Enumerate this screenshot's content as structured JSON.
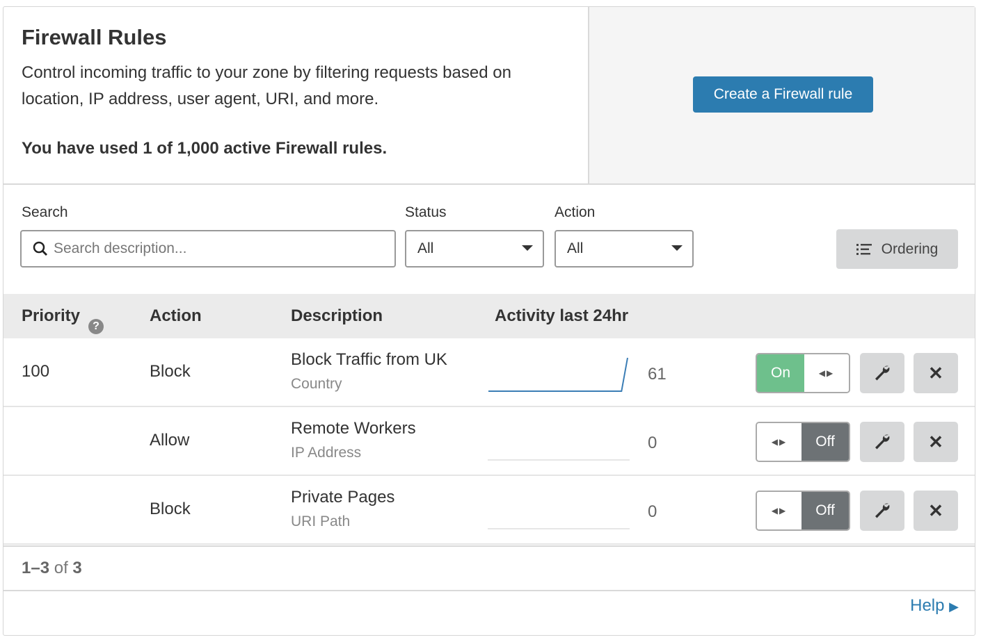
{
  "header": {
    "title": "Firewall Rules",
    "description": "Control incoming traffic to your zone by filtering requests based on location, IP address, user agent, URI, and more.",
    "usage": "You have used 1 of 1,000 active Firewall rules.",
    "create_button": "Create a Firewall rule"
  },
  "filters": {
    "search_label": "Search",
    "search_placeholder": "Search description...",
    "status_label": "Status",
    "status_value": "All",
    "action_label": "Action",
    "action_value": "All",
    "ordering_label": "Ordering"
  },
  "table": {
    "columns": [
      "Priority",
      "Action",
      "Description",
      "Activity last 24hr"
    ],
    "rows": [
      {
        "priority": "100",
        "action": "Block",
        "name": "Block Traffic from UK",
        "type": "Country",
        "count": "61",
        "status": "On",
        "activity": [
          0,
          0,
          0,
          0,
          0,
          0,
          0,
          0,
          0,
          0,
          0,
          0,
          0,
          0,
          0,
          0,
          0,
          0,
          0,
          0,
          0,
          0,
          0,
          61
        ]
      },
      {
        "priority": "",
        "action": "Allow",
        "name": "Remote Workers",
        "type": "IP Address",
        "count": "0",
        "status": "Off",
        "activity": []
      },
      {
        "priority": "",
        "action": "Block",
        "name": "Private Pages",
        "type": "URI Path",
        "count": "0",
        "status": "Off",
        "activity": []
      }
    ]
  },
  "pagination": {
    "range": "1–3",
    "of": "of",
    "total": "3"
  },
  "help_label": "Help",
  "colors": {
    "primary": "#2c7cb0",
    "on": "#6ec08c",
    "off": "#6d7275"
  }
}
